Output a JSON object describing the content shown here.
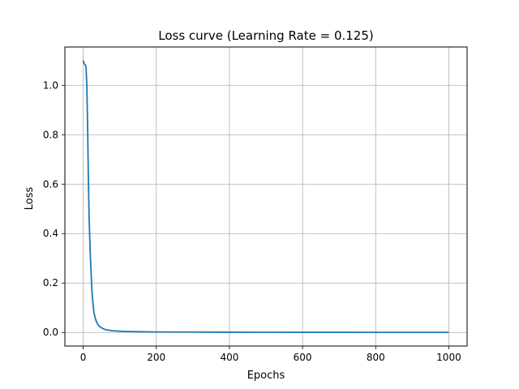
{
  "chart_data": {
    "type": "line",
    "title": "Loss curve (Learning Rate = 0.125)",
    "xlabel": "Epochs",
    "ylabel": "Loss",
    "xlim": [
      -50,
      1050
    ],
    "ylim": [
      -0.055,
      1.155
    ],
    "xticks": [
      0,
      200,
      400,
      600,
      800,
      1000
    ],
    "xtick_labels": [
      "0",
      "200",
      "400",
      "600",
      "800",
      "1000"
    ],
    "yticks": [
      0.0,
      0.2,
      0.4,
      0.6,
      0.8,
      1.0
    ],
    "ytick_labels": [
      "0.0",
      "0.2",
      "0.4",
      "0.6",
      "0.8",
      "1.0"
    ],
    "grid": true,
    "series": [
      {
        "color": "#1f77b4",
        "x": [
          0,
          2,
          4,
          6,
          8,
          10,
          12,
          14,
          16,
          18,
          20,
          22,
          24,
          26,
          28,
          30,
          33,
          36,
          40,
          45,
          50,
          55,
          60,
          70,
          80,
          90,
          100,
          120,
          150,
          200,
          300,
          400,
          500,
          600,
          700,
          800,
          900,
          1000
        ],
        "y": [
          1.1,
          1.09,
          1.085,
          1.083,
          1.07,
          1.0,
          0.85,
          0.65,
          0.48,
          0.38,
          0.3,
          0.23,
          0.17,
          0.13,
          0.1,
          0.077,
          0.058,
          0.045,
          0.033,
          0.024,
          0.019,
          0.015,
          0.012,
          0.009,
          0.007,
          0.006,
          0.005,
          0.004,
          0.003,
          0.002,
          0.0015,
          0.001,
          0.0008,
          0.0006,
          0.0005,
          0.0004,
          0.0003,
          0.0003
        ]
      }
    ]
  }
}
